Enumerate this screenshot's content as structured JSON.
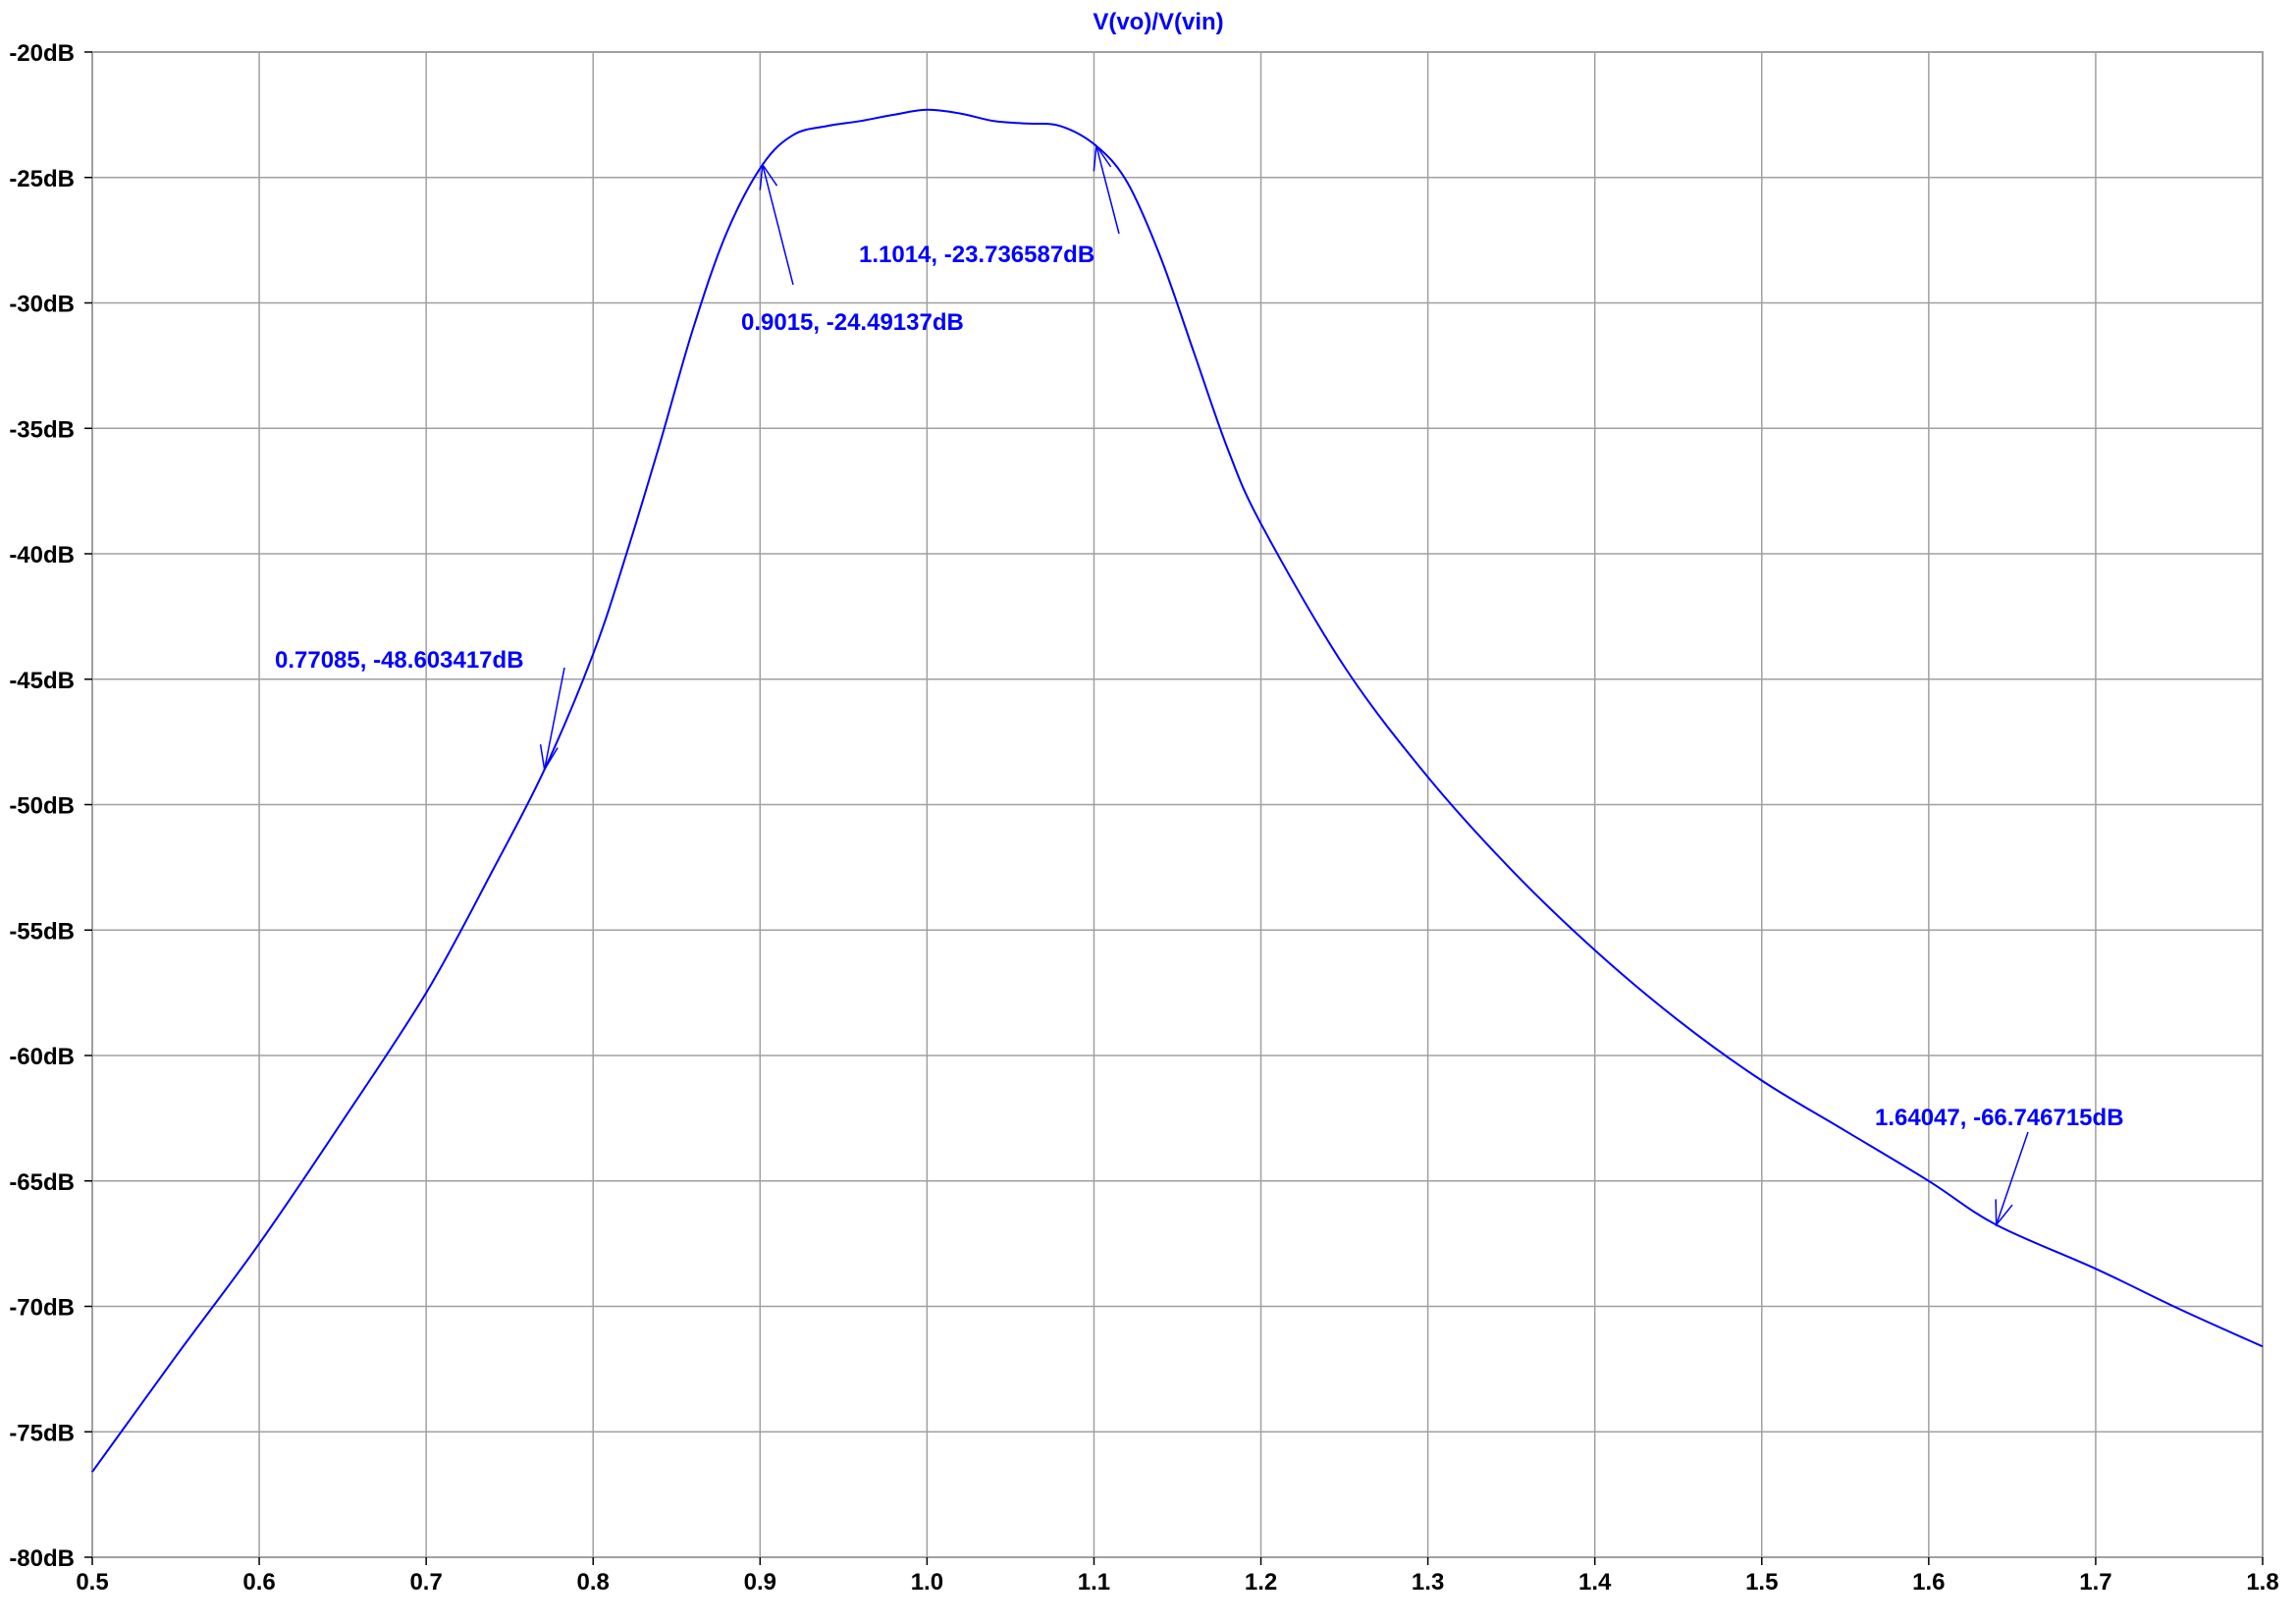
{
  "chart_data": {
    "type": "line",
    "title": "V(vo)/V(vin)",
    "xlabel": "",
    "ylabel": "",
    "xlim": [
      0.5,
      1.8
    ],
    "ylim": [
      -80,
      -20
    ],
    "grid": true,
    "x_ticks": [
      "0.5",
      "0.6",
      "0.7",
      "0.8",
      "0.9",
      "1.0",
      "1.1",
      "1.2",
      "1.3",
      "1.4",
      "1.5",
      "1.6",
      "1.7",
      "1.8"
    ],
    "y_ticks": [
      "-20dB",
      "-25dB",
      "-30dB",
      "-35dB",
      "-40dB",
      "-45dB",
      "-50dB",
      "-55dB",
      "-60dB",
      "-65dB",
      "-70dB",
      "-75dB",
      "-80dB"
    ],
    "colors": {
      "trace": "#0000ff",
      "grid": "#a0a0a0",
      "frame": "#a0a0a0",
      "annotation": "#0000ff"
    },
    "series": [
      {
        "x": [
          0.5,
          0.55,
          0.6,
          0.65,
          0.7,
          0.74,
          0.77085,
          0.8,
          0.82,
          0.84,
          0.86,
          0.88,
          0.9015,
          0.92,
          0.94,
          0.96,
          0.98,
          1.0,
          1.02,
          1.04,
          1.06,
          1.08,
          1.1014,
          1.12,
          1.14,
          1.16,
          1.18,
          1.2,
          1.25,
          1.3,
          1.35,
          1.4,
          1.45,
          1.5,
          1.55,
          1.6,
          1.64047,
          1.7,
          1.75,
          1.8
        ],
        "y": [
          -76.6,
          -72.0,
          -67.5,
          -62.6,
          -57.5,
          -52.6,
          -48.6,
          -44.0,
          -40.0,
          -35.6,
          -31.0,
          -27.2,
          -24.49,
          -23.3,
          -22.95,
          -22.75,
          -22.5,
          -22.3,
          -22.45,
          -22.75,
          -22.85,
          -22.95,
          -23.74,
          -25.2,
          -28.2,
          -32.0,
          -35.8,
          -38.8,
          -44.5,
          -48.9,
          -52.6,
          -55.8,
          -58.6,
          -61.0,
          -63.0,
          -65.0,
          -66.75,
          -68.5,
          -70.1,
          -71.6
        ]
      }
    ],
    "annotations": [
      {
        "label": "0.77085, -48.603417dB",
        "x": 0.77085,
        "y": -48.603417
      },
      {
        "label": "0.9015, -24.49137dB",
        "x": 0.9015,
        "y": -24.49137
      },
      {
        "label": "1.1014, -23.736587dB",
        "x": 1.1014,
        "y": -23.736587
      },
      {
        "label": "1.64047, -66.746715dB",
        "x": 1.64047,
        "y": -66.746715
      }
    ]
  }
}
